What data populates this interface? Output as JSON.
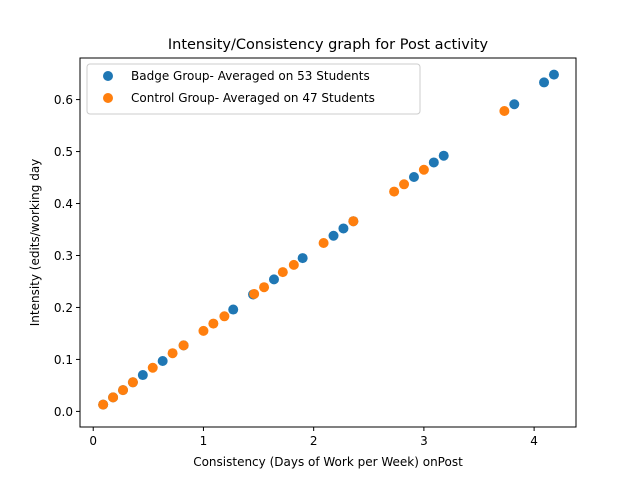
{
  "chart_data": {
    "type": "scatter",
    "title": "Intensity/Consistency graph for Post activity",
    "xlabel": "Consistency (Days of Work per Week) onPost",
    "ylabel": "Intensity (edits/working day",
    "xlim": [
      -0.12,
      4.38
    ],
    "ylim": [
      -0.03,
      0.68
    ],
    "xticks": [
      0,
      1,
      2,
      3,
      4
    ],
    "yticks": [
      0.0,
      0.1,
      0.2,
      0.3,
      0.4,
      0.5,
      0.6
    ],
    "xtick_labels": [
      "0",
      "1",
      "2",
      "3",
      "4"
    ],
    "ytick_labels": [
      "0.0",
      "0.1",
      "0.2",
      "0.3",
      "0.4",
      "0.5",
      "0.6"
    ],
    "legend_position": "top-left",
    "series": [
      {
        "name": "Badge Group- Averaged on 53 Students",
        "color": "#1f77b4",
        "points": [
          [
            0.09,
            0.013
          ],
          [
            0.18,
            0.027
          ],
          [
            0.27,
            0.041
          ],
          [
            0.36,
            0.056
          ],
          [
            0.45,
            0.07
          ],
          [
            0.63,
            0.097
          ],
          [
            0.82,
            0.127
          ],
          [
            1.27,
            0.196
          ],
          [
            1.45,
            0.225
          ],
          [
            1.64,
            0.254
          ],
          [
            1.9,
            0.295
          ],
          [
            2.18,
            0.338
          ],
          [
            2.27,
            0.352
          ],
          [
            2.36,
            0.366
          ],
          [
            2.91,
            0.451
          ],
          [
            3.09,
            0.479
          ],
          [
            3.18,
            0.492
          ],
          [
            3.82,
            0.591
          ],
          [
            4.09,
            0.633
          ],
          [
            4.18,
            0.648
          ]
        ]
      },
      {
        "name": "Control Group- Averaged on 47 Students",
        "color": "#ff7f0e",
        "points": [
          [
            0.09,
            0.013
          ],
          [
            0.18,
            0.027
          ],
          [
            0.27,
            0.041
          ],
          [
            0.36,
            0.056
          ],
          [
            0.54,
            0.084
          ],
          [
            0.72,
            0.112
          ],
          [
            0.82,
            0.127
          ],
          [
            1.0,
            0.155
          ],
          [
            1.09,
            0.169
          ],
          [
            1.19,
            0.183
          ],
          [
            1.46,
            0.226
          ],
          [
            1.55,
            0.239
          ],
          [
            1.72,
            0.268
          ],
          [
            1.82,
            0.282
          ],
          [
            2.09,
            0.324
          ],
          [
            2.36,
            0.366
          ],
          [
            2.73,
            0.423
          ],
          [
            2.82,
            0.437
          ],
          [
            3.0,
            0.465
          ],
          [
            3.73,
            0.578
          ]
        ]
      }
    ]
  }
}
